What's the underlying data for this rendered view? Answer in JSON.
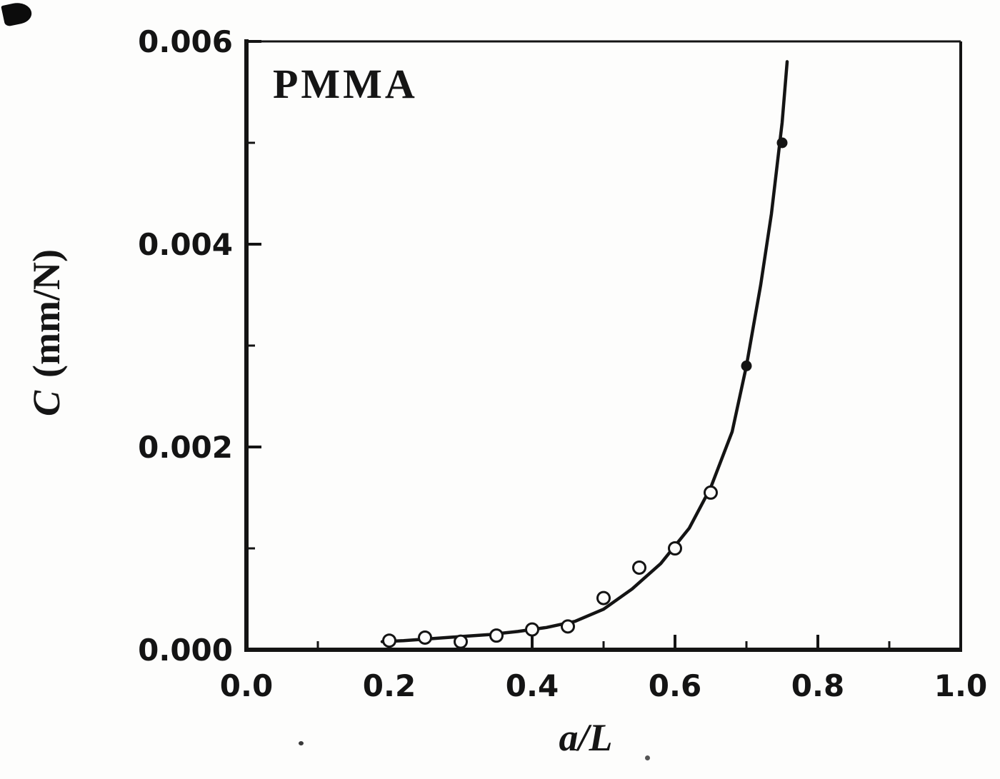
{
  "figure": {
    "title": "PMMA",
    "xlabel": "a/L",
    "ylabel_symbol": "C",
    "ylabel_units": "(mm/N)"
  },
  "chart_data": {
    "type": "scatter",
    "title": "PMMA",
    "xlabel": "a/L",
    "ylabel": "C (mm/N)",
    "xlim": [
      0.0,
      1.0
    ],
    "ylim": [
      0.0,
      0.006
    ],
    "grid": false,
    "legend": false,
    "x_tick_labels": [
      "0.0",
      "0.2",
      "0.4",
      "0.6",
      "0.8",
      "1.0"
    ],
    "x_tick_values": [
      0.0,
      0.2,
      0.4,
      0.6,
      0.8,
      1.0
    ],
    "x_minor_tick_values": [
      0.1,
      0.3,
      0.5,
      0.7,
      0.9
    ],
    "y_tick_labels": [
      "0.000",
      "0.002",
      "0.004",
      "0.006"
    ],
    "y_tick_values": [
      0.0,
      0.002,
      0.004,
      0.006
    ],
    "y_minor_tick_values": [
      0.001,
      0.003,
      0.005
    ],
    "series": [
      {
        "name": "compliance-data-open-circles",
        "marker": "open-circle",
        "x": [
          0.2,
          0.25,
          0.3,
          0.35,
          0.4,
          0.45,
          0.5,
          0.55,
          0.6,
          0.65
        ],
        "y": [
          9e-05,
          0.00012,
          8e-05,
          0.00014,
          0.0002,
          0.00023,
          0.00051,
          0.00081,
          0.001,
          0.00155
        ]
      },
      {
        "name": "compliance-data-filled-circles",
        "marker": "filled-circle",
        "x": [
          0.7,
          0.75
        ],
        "y": [
          0.0028,
          0.005
        ]
      }
    ],
    "fit_curve": {
      "name": "fitted-compliance-curve",
      "x": [
        0.19,
        0.22,
        0.26,
        0.3,
        0.34,
        0.38,
        0.42,
        0.46,
        0.5,
        0.54,
        0.58,
        0.62,
        0.65,
        0.68,
        0.7,
        0.72,
        0.735,
        0.75,
        0.757
      ],
      "y": [
        8e-05,
        9e-05,
        0.00011,
        0.00013,
        0.00015,
        0.00018,
        0.00022,
        0.00028,
        0.0004,
        0.0006,
        0.00085,
        0.0012,
        0.0016,
        0.00215,
        0.0028,
        0.0036,
        0.0043,
        0.0052,
        0.0058
      ]
    }
  }
}
